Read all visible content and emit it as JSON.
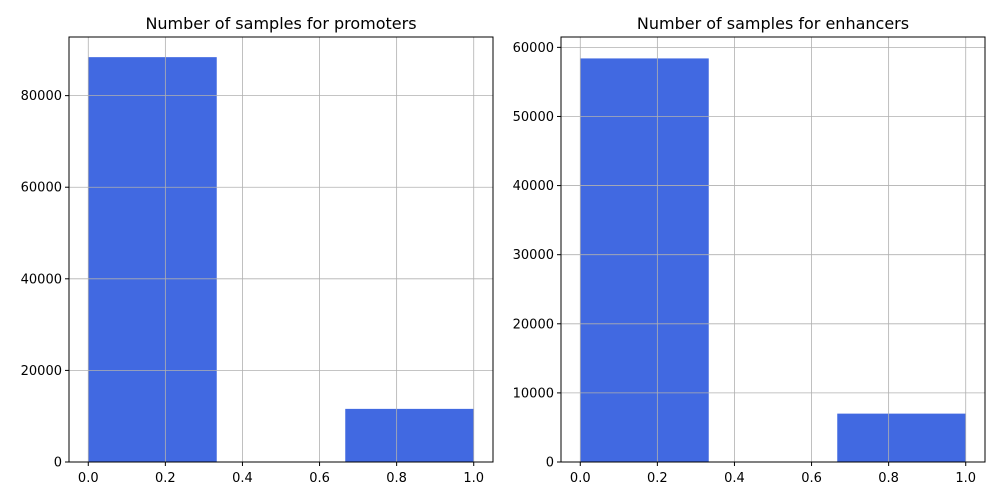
{
  "chart_data": [
    {
      "type": "bar",
      "title": "Number of samples for promoters",
      "xlabel": "",
      "ylabel": "",
      "xlim": [
        -0.05,
        1.05
      ],
      "ylim": [
        0,
        92800
      ],
      "xticks": [
        0.0,
        0.2,
        0.4,
        0.6,
        0.8,
        1.0
      ],
      "xtick_labels": [
        "0.0",
        "0.2",
        "0.4",
        "0.6",
        "0.8",
        "1.0"
      ],
      "yticks": [
        0,
        20000,
        40000,
        60000,
        80000
      ],
      "ytick_labels": [
        "0",
        "20000",
        "40000",
        "60000",
        "80000"
      ],
      "bins": [
        {
          "x0": 0.0,
          "x1": 0.3333,
          "count": 88400
        },
        {
          "x0": 0.3333,
          "x1": 0.6667,
          "count": 0
        },
        {
          "x0": 0.6667,
          "x1": 1.0,
          "count": 11600
        }
      ],
      "bar_color": "#4169e1",
      "grid": true
    },
    {
      "type": "bar",
      "title": "Number of samples for enhancers",
      "xlabel": "",
      "ylabel": "",
      "xlim": [
        -0.05,
        1.05
      ],
      "ylim": [
        0,
        61500
      ],
      "xticks": [
        0.0,
        0.2,
        0.4,
        0.6,
        0.8,
        1.0
      ],
      "xtick_labels": [
        "0.0",
        "0.2",
        "0.4",
        "0.6",
        "0.8",
        "1.0"
      ],
      "yticks": [
        0,
        10000,
        20000,
        30000,
        40000,
        50000,
        60000
      ],
      "ytick_labels": [
        "0",
        "10000",
        "20000",
        "30000",
        "40000",
        "50000",
        "60000"
      ],
      "bins": [
        {
          "x0": 0.0,
          "x1": 0.3333,
          "count": 58400
        },
        {
          "x0": 0.3333,
          "x1": 0.6667,
          "count": 0
        },
        {
          "x0": 0.6667,
          "x1": 1.0,
          "count": 7000
        }
      ],
      "bar_color": "#4169e1",
      "grid": true
    }
  ]
}
